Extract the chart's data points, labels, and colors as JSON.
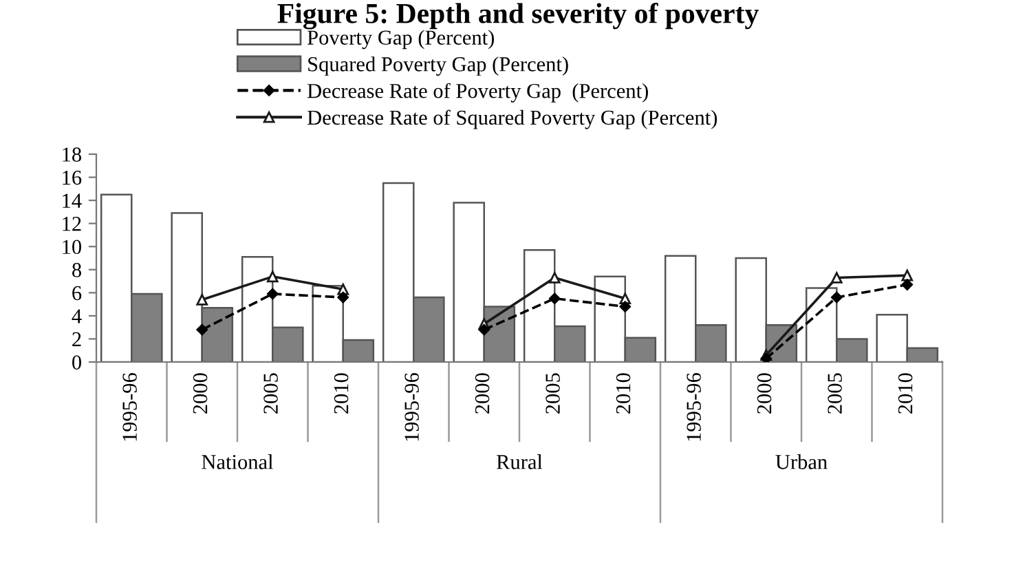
{
  "chart_data": {
    "type": "bar",
    "title": "Figure 5: Depth and severity of poverty",
    "categories": [
      "1995-96",
      "2000",
      "2005",
      "2010",
      "1995-96",
      "2000",
      "2005",
      "2010",
      "1995-96",
      "2000",
      "2005",
      "2010"
    ],
    "annotations": [
      "National",
      "Rural",
      "Urban"
    ],
    "series": [
      {
        "name": "Poverty Gap (Percent)",
        "color": "#ffffff",
        "values": [
          14.5,
          12.9,
          9.1,
          6.6,
          15.5,
          13.8,
          9.7,
          7.4,
          9.2,
          9.0,
          6.4,
          4.1
        ]
      },
      {
        "name": "Squared Poverty Gap (Percent)",
        "color": "#808080",
        "values": [
          5.9,
          4.7,
          3.0,
          1.9,
          5.6,
          4.8,
          3.1,
          2.1,
          3.2,
          3.2,
          2.0,
          1.2
        ]
      },
      {
        "name": "Decrease Rate of Poverty Gap  (Percent)",
        "type": "line",
        "color": "#000000",
        "marker": "diamond",
        "line_style": "dashed",
        "values": [
          null,
          2.8,
          5.9,
          5.6,
          null,
          2.8,
          5.5,
          4.8,
          null,
          0.3,
          5.6,
          6.7
        ]
      },
      {
        "name": "Decrease Rate of Squared Poverty Gap (Percent)",
        "type": "line",
        "color": "#1a1a1a",
        "marker": "triangle",
        "line_style": "solid",
        "values": [
          null,
          5.4,
          7.4,
          6.3,
          null,
          3.3,
          7.3,
          5.5,
          null,
          0.6,
          7.3,
          7.5
        ]
      }
    ],
    "ylim": [
      0,
      18
    ],
    "yticks": [
      0,
      2,
      4,
      6,
      8,
      10,
      12,
      14,
      16,
      18
    ],
    "grid": false,
    "legend": "top"
  }
}
